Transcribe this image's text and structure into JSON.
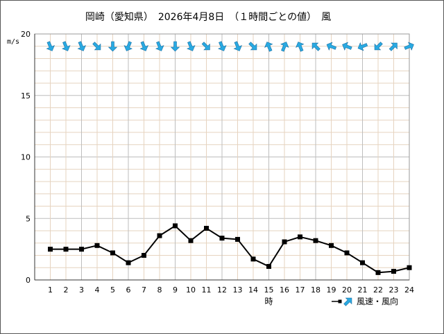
{
  "chart_data": {
    "type": "line",
    "title": "岡崎（愛知県）　2026年4月8日　（１時間ごとの値）　風",
    "ylabel": "m/s",
    "xlabel": "時",
    "ylim": [
      0,
      20
    ],
    "yticks": [
      0,
      5,
      10,
      15,
      20
    ],
    "x": [
      "1",
      "2",
      "3",
      "4",
      "5",
      "6",
      "7",
      "8",
      "9",
      "10",
      "11",
      "12",
      "13",
      "14",
      "15",
      "16",
      "17",
      "18",
      "19",
      "20",
      "21",
      "22",
      "23",
      "24"
    ],
    "series": [
      {
        "name": "風速・風向",
        "values": [
          2.5,
          2.5,
          2.5,
          2.8,
          2.2,
          1.4,
          2.0,
          3.6,
          4.4,
          3.2,
          4.2,
          3.4,
          3.3,
          1.7,
          1.1,
          3.1,
          3.5,
          3.2,
          2.8,
          2.2,
          1.4,
          0.6,
          0.7,
          1.0
        ],
        "color": "#000000"
      }
    ],
    "wind_directions": [
      "NNW",
      "NNW",
      "NNW",
      "NW",
      "N",
      "NNE",
      "NNW",
      "NNW",
      "N",
      "NNW",
      "NW",
      "NNW",
      "NNW",
      "NW",
      "SSE",
      "SSW",
      "SSE",
      "SE",
      "ESE",
      "ESE",
      "ENE",
      "NE",
      "SW",
      "WSW"
    ],
    "grid": true,
    "arrow_color": "#29aae2",
    "legend": "bottom-right"
  }
}
